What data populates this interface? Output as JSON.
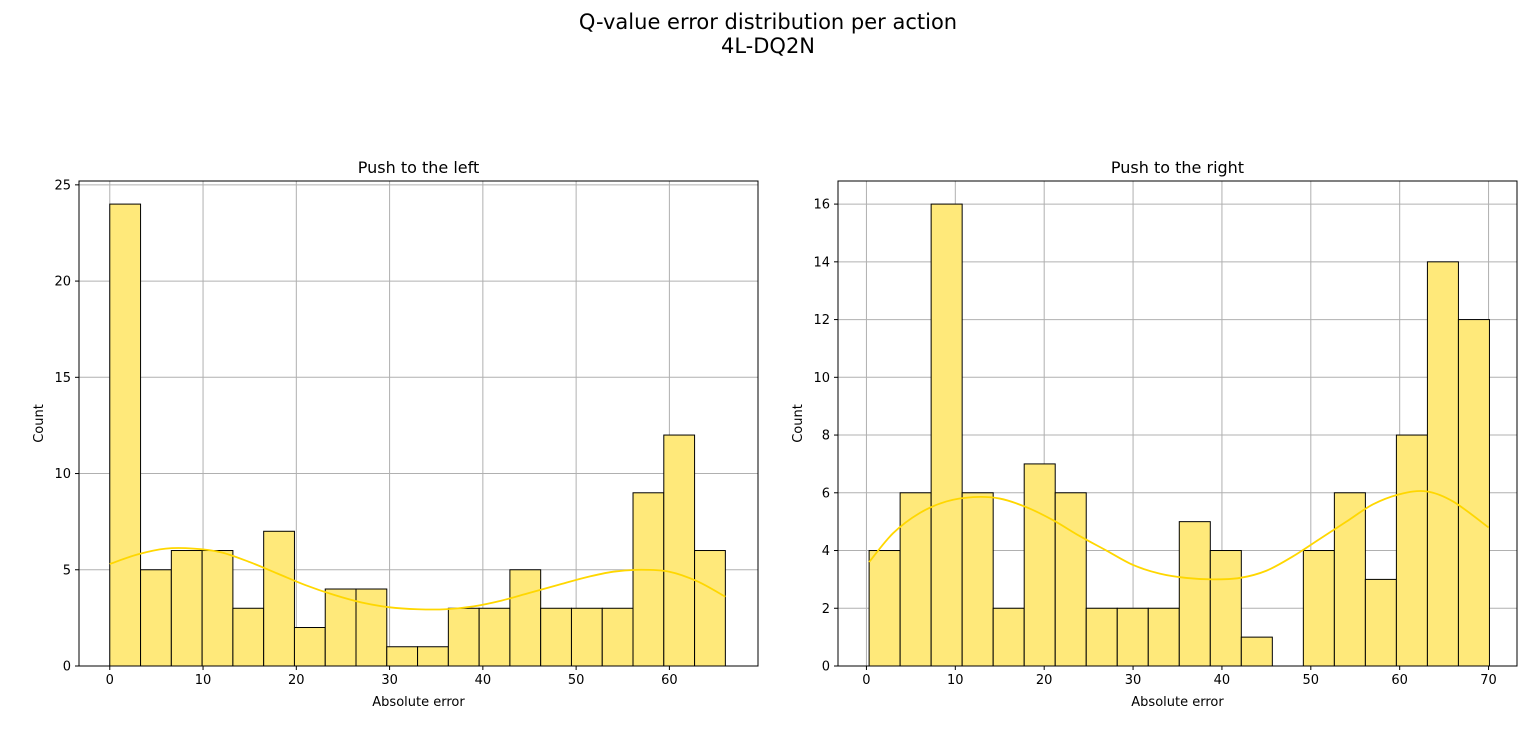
{
  "figure": {
    "title_line1": "Q-value error distribution per action",
    "title_line2": "4L-DQ2N"
  },
  "colors": {
    "bar_fill": "#ffe97a",
    "bar_edge": "#000000",
    "kde_line": "#ffd700",
    "grid": "#b0b0b0"
  },
  "chart_data": [
    {
      "type": "bar",
      "subtype": "histogram",
      "title": "Push to the left",
      "xlabel": "Absolute error",
      "ylabel": "Count",
      "xlim": [
        -3.3,
        69.5
      ],
      "ylim": [
        0,
        25.2
      ],
      "xticks": [
        0,
        10,
        20,
        30,
        40,
        50,
        60
      ],
      "yticks": [
        0,
        5,
        10,
        15,
        20,
        25
      ],
      "grid": true,
      "bin_start": 0,
      "bin_width": 3.3,
      "values": [
        24,
        5,
        6,
        6,
        3,
        7,
        2,
        4,
        4,
        1,
        1,
        3,
        3,
        5,
        3,
        3,
        3,
        9,
        12,
        6
      ],
      "kde": {
        "x": [
          0,
          3,
          6,
          9,
          12,
          15,
          18,
          21,
          24,
          27,
          30,
          33,
          36,
          39,
          42,
          45,
          48,
          51,
          54,
          57,
          60,
          63,
          66
        ],
        "y": [
          5.3,
          5.8,
          6.1,
          6.1,
          5.9,
          5.4,
          4.8,
          4.2,
          3.7,
          3.3,
          3.05,
          2.95,
          2.95,
          3.1,
          3.4,
          3.8,
          4.2,
          4.6,
          4.9,
          5.0,
          4.9,
          4.4,
          3.6
        ]
      }
    },
    {
      "type": "bar",
      "subtype": "histogram",
      "title": "Push to the right",
      "xlabel": "Absolute error",
      "ylabel": "Count",
      "xlim": [
        -3.2,
        73.2
      ],
      "ylim": [
        0,
        16.8
      ],
      "xticks": [
        0,
        10,
        20,
        30,
        40,
        50,
        60,
        70
      ],
      "yticks": [
        0,
        2,
        4,
        6,
        8,
        10,
        12,
        14,
        16
      ],
      "grid": true,
      "bin_start": 0.3,
      "bin_width": 3.49,
      "values": [
        4,
        6,
        16,
        6,
        2,
        7,
        6,
        2,
        2,
        2,
        5,
        4,
        1,
        0,
        4,
        6,
        3,
        8,
        14,
        12
      ],
      "kde": {
        "x": [
          0.3,
          3,
          6,
          9,
          12,
          15,
          18,
          21,
          24,
          27,
          30,
          33,
          36,
          39,
          42,
          45,
          48,
          51,
          54,
          57,
          60,
          63,
          66,
          70
        ],
        "y": [
          3.6,
          4.6,
          5.3,
          5.7,
          5.85,
          5.8,
          5.5,
          5.05,
          4.5,
          4.0,
          3.5,
          3.2,
          3.05,
          3.0,
          3.05,
          3.3,
          3.8,
          4.4,
          5.0,
          5.6,
          5.95,
          6.05,
          5.7,
          4.8
        ]
      }
    }
  ]
}
